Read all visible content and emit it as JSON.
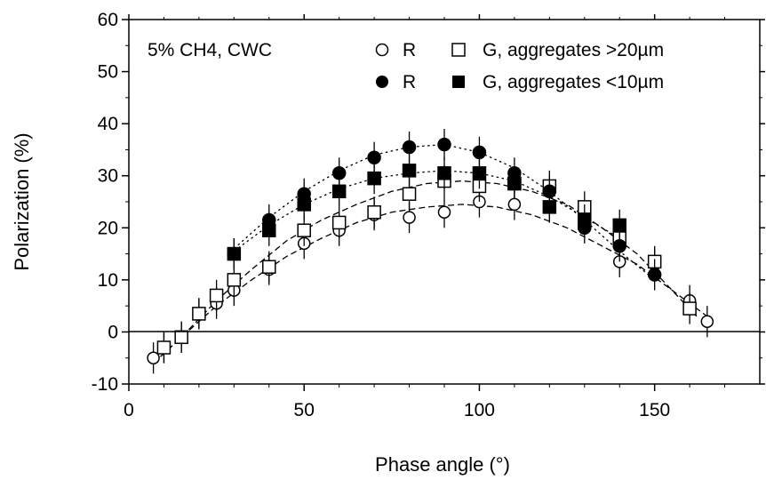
{
  "chart_data": {
    "type": "scatter",
    "title": "",
    "xlabel": "Phase angle (°)",
    "ylabel": "Polarization (%)",
    "xlim": [
      0,
      180
    ],
    "ylim": [
      -10,
      60
    ],
    "x_ticks": [
      "0",
      "50",
      "100",
      "150"
    ],
    "y_ticks": [
      "-10",
      "0",
      "10",
      "20",
      "30",
      "40",
      "50",
      "60"
    ],
    "grid": false,
    "legend_position": "top-right",
    "annotation": "5% CH4, CWC",
    "legend": {
      "row1": {
        "r": "R",
        "g": "G, aggregates >20µm"
      },
      "row2": {
        "r": "R",
        "g": "G, aggregates <10µm"
      }
    },
    "series": [
      {
        "name": "R, aggregates >20µm",
        "marker": "open-circle",
        "x": [
          7,
          10,
          15,
          20,
          25,
          30,
          40,
          50,
          60,
          70,
          80,
          90,
          100,
          110,
          120,
          130,
          140,
          150,
          160,
          165
        ],
        "y": [
          -5,
          -3,
          -1,
          3.5,
          5.5,
          8,
          12,
          17,
          19.5,
          22.5,
          22,
          23,
          25,
          24.5,
          24,
          22,
          13.5,
          13,
          6,
          2
        ]
      },
      {
        "name": "G, aggregates >20µm",
        "marker": "open-square",
        "x": [
          10,
          15,
          20,
          25,
          30,
          40,
          50,
          60,
          70,
          80,
          90,
          100,
          110,
          120,
          130,
          140,
          150,
          160
        ],
        "y": [
          -3,
          -1,
          3.5,
          7,
          10,
          12.5,
          19.5,
          21,
          23,
          26.5,
          29,
          28,
          28.5,
          28,
          24,
          18,
          13.5,
          4.5
        ]
      },
      {
        "name": "R, aggregates <10µm",
        "marker": "filled-circle",
        "x": [
          30,
          40,
          50,
          60,
          70,
          80,
          90,
          100,
          110,
          120,
          130,
          140,
          150
        ],
        "y": [
          15,
          21.5,
          26.5,
          30.5,
          33.5,
          35.5,
          36,
          34.5,
          30.5,
          27,
          20,
          16.5,
          11
        ]
      },
      {
        "name": "G, aggregates <10µm",
        "marker": "filled-square",
        "x": [
          30,
          40,
          50,
          60,
          70,
          80,
          90,
          100,
          110,
          120,
          130,
          140
        ],
        "y": [
          15,
          19.5,
          24.5,
          27,
          29.5,
          31,
          30.5,
          30.5,
          28.5,
          24,
          21.5,
          20.5
        ]
      }
    ],
    "fit_curves": [
      {
        "style": "dashed",
        "x": [
          7,
          15,
          25,
          35,
          45,
          55,
          65,
          75,
          85,
          95,
          105,
          115,
          125,
          135,
          145,
          155,
          165
        ],
        "y": [
          -6,
          -1,
          5,
          10,
          14.5,
          18,
          21,
          23,
          24,
          24.5,
          24,
          22.5,
          20,
          16.5,
          13,
          8,
          3
        ]
      },
      {
        "style": "dashed",
        "x": [
          7,
          15,
          25,
          35,
          45,
          55,
          65,
          75,
          85,
          95,
          105,
          115,
          125,
          135,
          145,
          155,
          162
        ],
        "y": [
          -6,
          -1,
          6,
          12,
          17.5,
          21.5,
          24.5,
          27,
          28.5,
          29,
          28.5,
          27,
          24.5,
          20,
          15,
          8,
          3
        ]
      },
      {
        "style": "dotted",
        "x": [
          30,
          40,
          50,
          60,
          70,
          80,
          90,
          100,
          110,
          120,
          130,
          140,
          150
        ],
        "y": [
          16,
          22,
          27,
          31,
          34,
          35.5,
          36,
          34.5,
          31.5,
          27,
          21.5,
          15.5,
          10
        ]
      },
      {
        "style": "dotted",
        "x": [
          30,
          40,
          50,
          60,
          70,
          80,
          90,
          100,
          110,
          120,
          130,
          140
        ],
        "y": [
          15.5,
          20.5,
          24.5,
          27.5,
          29.5,
          30.5,
          31,
          30.5,
          29,
          26,
          22,
          18
        ]
      }
    ]
  }
}
